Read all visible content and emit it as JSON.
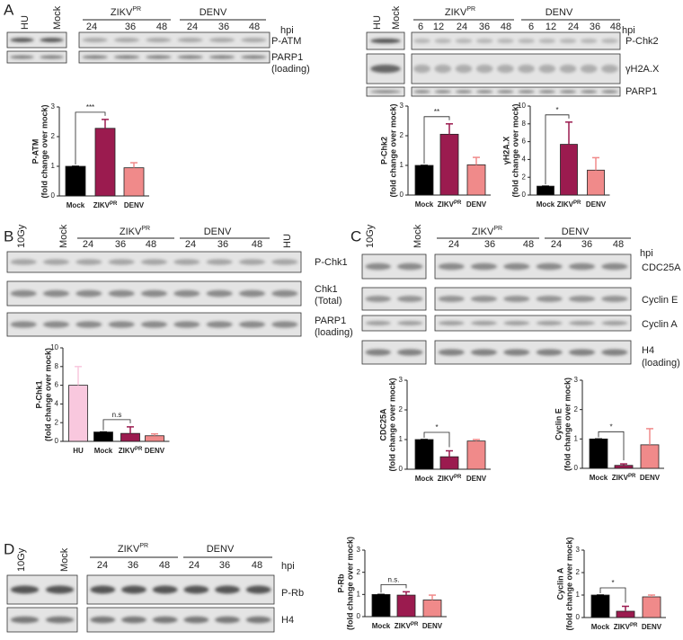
{
  "figure": {
    "panels": [
      "A",
      "B",
      "C",
      "D"
    ],
    "a_left": {
      "lanes": [
        "HU",
        "Mock"
      ],
      "groups": [
        {
          "text": "ZIKV",
          "sup": "PR"
        },
        {
          "text": "DENV"
        }
      ],
      "times": [
        "24",
        "36",
        "48",
        "24",
        "36",
        "48"
      ],
      "unit": "hpi",
      "rows": [
        "P-ATM",
        "PARP1"
      ],
      "note": "(loading)"
    },
    "a_right": {
      "lanes": [
        "HU",
        "Mock"
      ],
      "groups": [
        {
          "text": "ZIKV",
          "sup": "PR"
        },
        {
          "text": "DENV"
        }
      ],
      "times": [
        "6",
        "12",
        "24",
        "36",
        "48",
        "6",
        "12",
        "24",
        "36",
        "48"
      ],
      "unit": "hpi",
      "rows": [
        "P-Chk2",
        "γH2A.X",
        "PARP1"
      ]
    },
    "b": {
      "lanes": [
        "10Gy",
        "Mock",
        "HU"
      ],
      "groups": [
        {
          "text": "ZIKV",
          "sup": "PR"
        },
        {
          "text": "DENV"
        }
      ],
      "times": [
        "24",
        "36",
        "48",
        "24",
        "36",
        "48"
      ],
      "rows": [
        "P-Chk1",
        "Chk1",
        "PARP1"
      ],
      "notes": [
        "(Total)",
        "(loading)"
      ]
    },
    "c": {
      "lanes": [
        "10Gy",
        "Mock"
      ],
      "groups": [
        {
          "text": "ZIKV",
          "sup": "PR"
        },
        {
          "text": "DENV"
        }
      ],
      "times": [
        "24",
        "36",
        "48",
        "24",
        "36",
        "48"
      ],
      "unit": "hpi",
      "rows": [
        "CDC25A",
        "Cyclin E",
        "Cyclin A",
        "H4"
      ],
      "note": "(loading)"
    },
    "d": {
      "lanes": [
        "10Gy",
        "Mock"
      ],
      "groups": [
        {
          "text": "ZIKV",
          "sup": "PR"
        },
        {
          "text": "DENV"
        }
      ],
      "times": [
        "24",
        "36",
        "48",
        "24",
        "36",
        "48"
      ],
      "unit": "hpi",
      "rows": [
        "P-Rb",
        "H4"
      ]
    }
  },
  "chart_data": [
    {
      "type": "bar",
      "ylabel": "P-ATM",
      "ylabel2": "(fold change over mock)",
      "categories": [
        "Mock",
        "ZIKV",
        "DENV"
      ],
      "category_superscripts": {
        "1": "PR"
      },
      "values": [
        1,
        2.28,
        0.95
      ],
      "errors": [
        0,
        0.3,
        0.17
      ],
      "colors": [
        "#000000",
        "#9b1b4f",
        "#f08a8a"
      ],
      "ylim": [
        0,
        3
      ],
      "yticks": [
        0,
        1,
        2,
        3
      ],
      "annotation": "***"
    },
    {
      "type": "bar",
      "ylabel": "P-Chk2",
      "ylabel2": "(fold change over mock)",
      "categories": [
        "Mock",
        "ZIKV",
        "DENV"
      ],
      "category_superscripts": {
        "1": "PR"
      },
      "values": [
        1,
        2.05,
        1.02
      ],
      "errors": [
        0,
        0.35,
        0.25
      ],
      "colors": [
        "#000000",
        "#9b1b4f",
        "#f08a8a"
      ],
      "ylim": [
        0,
        3
      ],
      "yticks": [
        0,
        1,
        2,
        3
      ],
      "annotation": "**"
    },
    {
      "type": "bar",
      "ylabel": "γH2A.X",
      "ylabel2": "(fold change over mock)",
      "categories": [
        "Mock",
        "ZIKV",
        "DENV"
      ],
      "category_superscripts": {
        "1": "PR"
      },
      "values": [
        1,
        5.7,
        2.8
      ],
      "errors": [
        0,
        2.5,
        1.4
      ],
      "colors": [
        "#000000",
        "#9b1b4f",
        "#f08a8a"
      ],
      "ylim": [
        0,
        10
      ],
      "yticks": [
        0,
        2,
        4,
        6,
        8,
        10
      ],
      "annotation": "*"
    },
    {
      "type": "bar",
      "ylabel": "P-Chk1",
      "ylabel2": "(fold change over mock)",
      "categories": [
        "HU",
        "Mock",
        "ZIKV",
        "DENV"
      ],
      "category_superscripts": {
        "2": "PR"
      },
      "values": [
        6,
        1,
        0.85,
        0.6
      ],
      "errors": [
        2,
        0,
        0.7,
        0.2
      ],
      "colors": [
        "#f9c8de",
        "#000000",
        "#9b1b4f",
        "#f08a8a"
      ],
      "ylim": [
        0,
        10
      ],
      "yticks": [
        0,
        2,
        4,
        6,
        8,
        10
      ],
      "annotation": "n.s"
    },
    {
      "type": "bar",
      "ylabel": "CDC25A",
      "ylabel2": "(fold change over mock)",
      "categories": [
        "Mock",
        "ZIKV",
        "DENV"
      ],
      "category_superscripts": {
        "1": "PR"
      },
      "values": [
        1,
        0.42,
        0.95
      ],
      "errors": [
        0,
        0.2,
        0.05
      ],
      "colors": [
        "#000000",
        "#9b1b4f",
        "#f08a8a"
      ],
      "ylim": [
        0,
        3
      ],
      "yticks": [
        0,
        1,
        2,
        3
      ],
      "annotation": "*"
    },
    {
      "type": "bar",
      "ylabel": "Cyclin E",
      "ylabel2": "(fold change over mock)",
      "categories": [
        "Mock",
        "ZIKV",
        "DENV"
      ],
      "category_superscripts": {
        "1": "PR"
      },
      "values": [
        1,
        0.1,
        0.8
      ],
      "errors": [
        0,
        0.05,
        0.55
      ],
      "colors": [
        "#000000",
        "#9b1b4f",
        "#f08a8a"
      ],
      "ylim": [
        0,
        3
      ],
      "yticks": [
        0,
        1,
        2,
        3
      ],
      "annotation": "*"
    },
    {
      "type": "bar",
      "ylabel": "P-Rb",
      "ylabel2": "(fold change over mock)",
      "categories": [
        "Mock",
        "ZIKV",
        "DENV"
      ],
      "category_superscripts": {
        "1": "PR"
      },
      "values": [
        1,
        0.97,
        0.75
      ],
      "errors": [
        0,
        0.15,
        0.22
      ],
      "colors": [
        "#000000",
        "#9b1b4f",
        "#f08a8a"
      ],
      "ylim": [
        0,
        3
      ],
      "yticks": [
        0,
        1,
        2,
        3
      ],
      "annotation": "n.s."
    },
    {
      "type": "bar",
      "ylabel": "Cyclin A",
      "ylabel2": "(fold change over mock)",
      "categories": [
        "Mock",
        "ZIKV",
        "DENV"
      ],
      "category_superscripts": {
        "1": "PR"
      },
      "values": [
        1,
        0.28,
        0.92
      ],
      "errors": [
        0,
        0.22,
        0.08
      ],
      "colors": [
        "#000000",
        "#9b1b4f",
        "#f08a8a"
      ],
      "ylim": [
        0,
        3
      ],
      "yticks": [
        0,
        1,
        2,
        3
      ],
      "annotation": "*"
    }
  ]
}
